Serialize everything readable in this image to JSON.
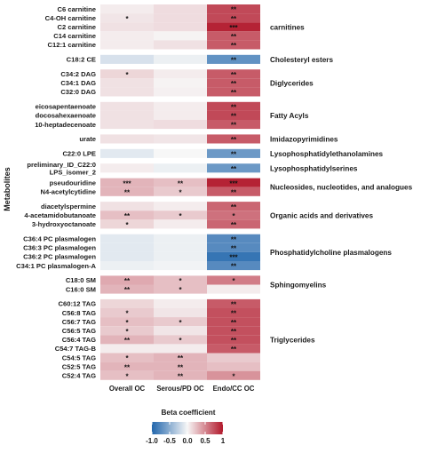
{
  "chart_data": {
    "type": "heatmap",
    "ylabel": "Metabolites",
    "columns": [
      "Overall OC",
      "Serous/PD OC",
      "Endo/CC OC"
    ],
    "legend": {
      "title": "Beta coefficient",
      "ticks": [
        "-1.0",
        "-0.5",
        "0.0",
        "0.5",
        "1"
      ],
      "range": [
        -1.0,
        1.0
      ],
      "colors": {
        "low": "#2166ac",
        "mid": "#f7f7f7",
        "high": "#b2182b"
      },
      "placement": "bottom"
    },
    "groups": [
      {
        "name": "carnitines",
        "rows": [
          {
            "label": "C6 carnitine",
            "values": [
              0.05,
              0.12,
              0.78
            ],
            "stars": [
              "",
              "",
              "**"
            ]
          },
          {
            "label": "C4-OH carnitine",
            "values": [
              0.08,
              0.12,
              0.78
            ],
            "stars": [
              "*",
              "",
              "**"
            ]
          },
          {
            "label": "C2 carnitine",
            "values": [
              0.1,
              0.12,
              0.95
            ],
            "stars": [
              "",
              "",
              "***"
            ]
          },
          {
            "label": "C14 carnitine",
            "values": [
              0.05,
              0.02,
              0.7
            ],
            "stars": [
              "",
              "",
              "**"
            ]
          },
          {
            "label": "C12:1 carnitine",
            "values": [
              0.05,
              0.1,
              0.7
            ],
            "stars": [
              "",
              "",
              "**"
            ]
          }
        ]
      },
      {
        "name": "Cholesteryl esters",
        "rows": [
          {
            "label": "C18:2 CE",
            "values": [
              -0.15,
              -0.05,
              -0.7
            ],
            "stars": [
              "",
              "",
              "**"
            ]
          }
        ]
      },
      {
        "name": "Diglycerides",
        "rows": [
          {
            "label": "C34:2 DAG",
            "values": [
              0.15,
              0.05,
              0.7
            ],
            "stars": [
              "*",
              "",
              "**"
            ]
          },
          {
            "label": "C34:1 DAG",
            "values": [
              0.1,
              0.02,
              0.7
            ],
            "stars": [
              "",
              "",
              "**"
            ]
          },
          {
            "label": "C32:0 DAG",
            "values": [
              0.1,
              0.03,
              0.7
            ],
            "stars": [
              "",
              "",
              "**"
            ]
          }
        ]
      },
      {
        "name": "Fatty Acyls",
        "rows": [
          {
            "label": "eicosapentaenoate",
            "values": [
              0.1,
              0.05,
              0.78
            ],
            "stars": [
              "",
              "",
              "**"
            ]
          },
          {
            "label": "docosahexaenoate",
            "values": [
              0.1,
              0.05,
              0.78
            ],
            "stars": [
              "",
              "",
              "**"
            ]
          },
          {
            "label": "10-heptadecenoate",
            "values": [
              0.1,
              0.12,
              0.7
            ],
            "stars": [
              "",
              "",
              "**"
            ]
          }
        ]
      },
      {
        "name": "Imidazopyrimidines",
        "rows": [
          {
            "label": "urate",
            "values": [
              0.1,
              0.08,
              0.7
            ],
            "stars": [
              "",
              "",
              "**"
            ]
          }
        ]
      },
      {
        "name": "Lysophosphatidylethanolamines",
        "rows": [
          {
            "label": "C22:0 LPE",
            "values": [
              -0.1,
              0.0,
              -0.65
            ],
            "stars": [
              "",
              "",
              "**"
            ]
          }
        ]
      },
      {
        "name": "Lysophosphatidylserines",
        "rows": [
          {
            "label": "preliminary_ID_C22:0 LPS_isomer_2",
            "values": [
              0.05,
              -0.05,
              -0.65
            ],
            "stars": [
              "",
              "",
              "**"
            ]
          }
        ]
      },
      {
        "name": "Nucleosides, nucleotides, and analogues",
        "rows": [
          {
            "label": "pseudouridine",
            "values": [
              0.3,
              0.25,
              0.95
            ],
            "stars": [
              "***",
              "**",
              "***"
            ]
          },
          {
            "label": "N4-acetylcytidine",
            "values": [
              0.3,
              0.2,
              0.7
            ],
            "stars": [
              "**",
              "*",
              "**"
            ]
          }
        ]
      },
      {
        "name": "Organic acids and derivatives",
        "rows": [
          {
            "label": "diacetylspermine",
            "values": [
              0.1,
              0.05,
              0.65
            ],
            "stars": [
              "",
              "",
              "**"
            ]
          },
          {
            "label": "4-acetamidobutanoate",
            "values": [
              0.25,
              0.2,
              0.6
            ],
            "stars": [
              "**",
              "*",
              "*"
            ]
          },
          {
            "label": "3-hydroxyoctanoate",
            "values": [
              0.15,
              0.05,
              0.65
            ],
            "stars": [
              "*",
              "",
              "**"
            ]
          }
        ]
      },
      {
        "name": "Phosphatidylcholine plasmalogens",
        "rows": [
          {
            "label": "C36:4 PC plasmalogen",
            "values": [
              -0.1,
              -0.05,
              -0.75
            ],
            "stars": [
              "",
              "",
              "**"
            ]
          },
          {
            "label": "C36:3 PC plasmalogen",
            "values": [
              -0.1,
              -0.05,
              -0.75
            ],
            "stars": [
              "",
              "",
              "**"
            ]
          },
          {
            "label": "C36:2 PC plasmalogen",
            "values": [
              -0.1,
              -0.05,
              -0.9
            ],
            "stars": [
              "",
              "",
              "***"
            ]
          },
          {
            "label": "C34:1 PC plasmalogen-A",
            "values": [
              -0.05,
              -0.03,
              -0.75
            ],
            "stars": [
              "",
              "",
              "**"
            ]
          }
        ]
      },
      {
        "name": "Sphingomyelins",
        "rows": [
          {
            "label": "C18:0 SM",
            "values": [
              0.35,
              0.25,
              0.55
            ],
            "stars": [
              "**",
              "*",
              "*"
            ]
          },
          {
            "label": "C16:0 SM",
            "values": [
              0.3,
              0.25,
              0.05
            ],
            "stars": [
              "**",
              "*",
              ""
            ]
          }
        ]
      },
      {
        "name": "Triglycerides",
        "rows": [
          {
            "label": "C60:12 TAG",
            "values": [
              0.15,
              0.05,
              0.7
            ],
            "stars": [
              "",
              "",
              "**"
            ]
          },
          {
            "label": "C56:8 TAG",
            "values": [
              0.2,
              0.08,
              0.75
            ],
            "stars": [
              "*",
              "",
              "**"
            ]
          },
          {
            "label": "C56:7 TAG",
            "values": [
              0.25,
              0.2,
              0.75
            ],
            "stars": [
              "*",
              "*",
              "**"
            ]
          },
          {
            "label": "C56:5 TAG",
            "values": [
              0.2,
              0.08,
              0.75
            ],
            "stars": [
              "*",
              "",
              "**"
            ]
          },
          {
            "label": "C56:4 TAG",
            "values": [
              0.3,
              0.2,
              0.75
            ],
            "stars": [
              "**",
              "*",
              "**"
            ]
          },
          {
            "label": "C54:7 TAG-B",
            "values": [
              0.05,
              0.05,
              0.7
            ],
            "stars": [
              "",
              "",
              "**"
            ]
          },
          {
            "label": "C54:5 TAG",
            "values": [
              0.25,
              0.3,
              0.2
            ],
            "stars": [
              "*",
              "**",
              ""
            ]
          },
          {
            "label": "C52:5 TAG",
            "values": [
              0.3,
              0.3,
              0.25
            ],
            "stars": [
              "**",
              "**",
              ""
            ]
          },
          {
            "label": "C52:4 TAG",
            "values": [
              0.25,
              0.3,
              0.45
            ],
            "stars": [
              "*",
              "**",
              "*"
            ]
          }
        ]
      }
    ]
  }
}
